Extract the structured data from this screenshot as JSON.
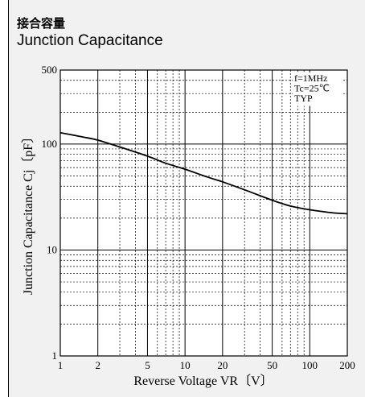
{
  "title_jp": "接合容量",
  "title_en": "Junction Capacitance",
  "chart_data": {
    "type": "line",
    "xscale": "log",
    "yscale": "log",
    "xlim": [
      1,
      200
    ],
    "ylim": [
      1,
      500
    ],
    "grid": true,
    "xlabel": "Reverse Voltage  VR〔V〕",
    "ylabel": "Junction Capacitance  Cj〔pF〕",
    "x_ticks": [
      1,
      2,
      5,
      10,
      20,
      50,
      100,
      200
    ],
    "x_tick_labels": [
      "1",
      "2",
      "5",
      "10",
      "20",
      "50",
      "100",
      "200"
    ],
    "y_ticks": [
      1,
      10,
      100,
      500
    ],
    "y_tick_labels": [
      "1",
      "10",
      "100",
      "500"
    ],
    "annotations": [
      "f=1MHz",
      "Tc=25℃",
      "TYP"
    ],
    "series": [
      {
        "x": [
          1,
          1.5,
          2,
          3,
          5,
          7,
          10,
          15,
          20,
          30,
          50,
          70,
          100,
          150,
          200
        ],
        "y": [
          128,
          117,
          109,
          94,
          77,
          66,
          58,
          49,
          44,
          37,
          29.5,
          26,
          24,
          22.5,
          22
        ]
      }
    ]
  }
}
